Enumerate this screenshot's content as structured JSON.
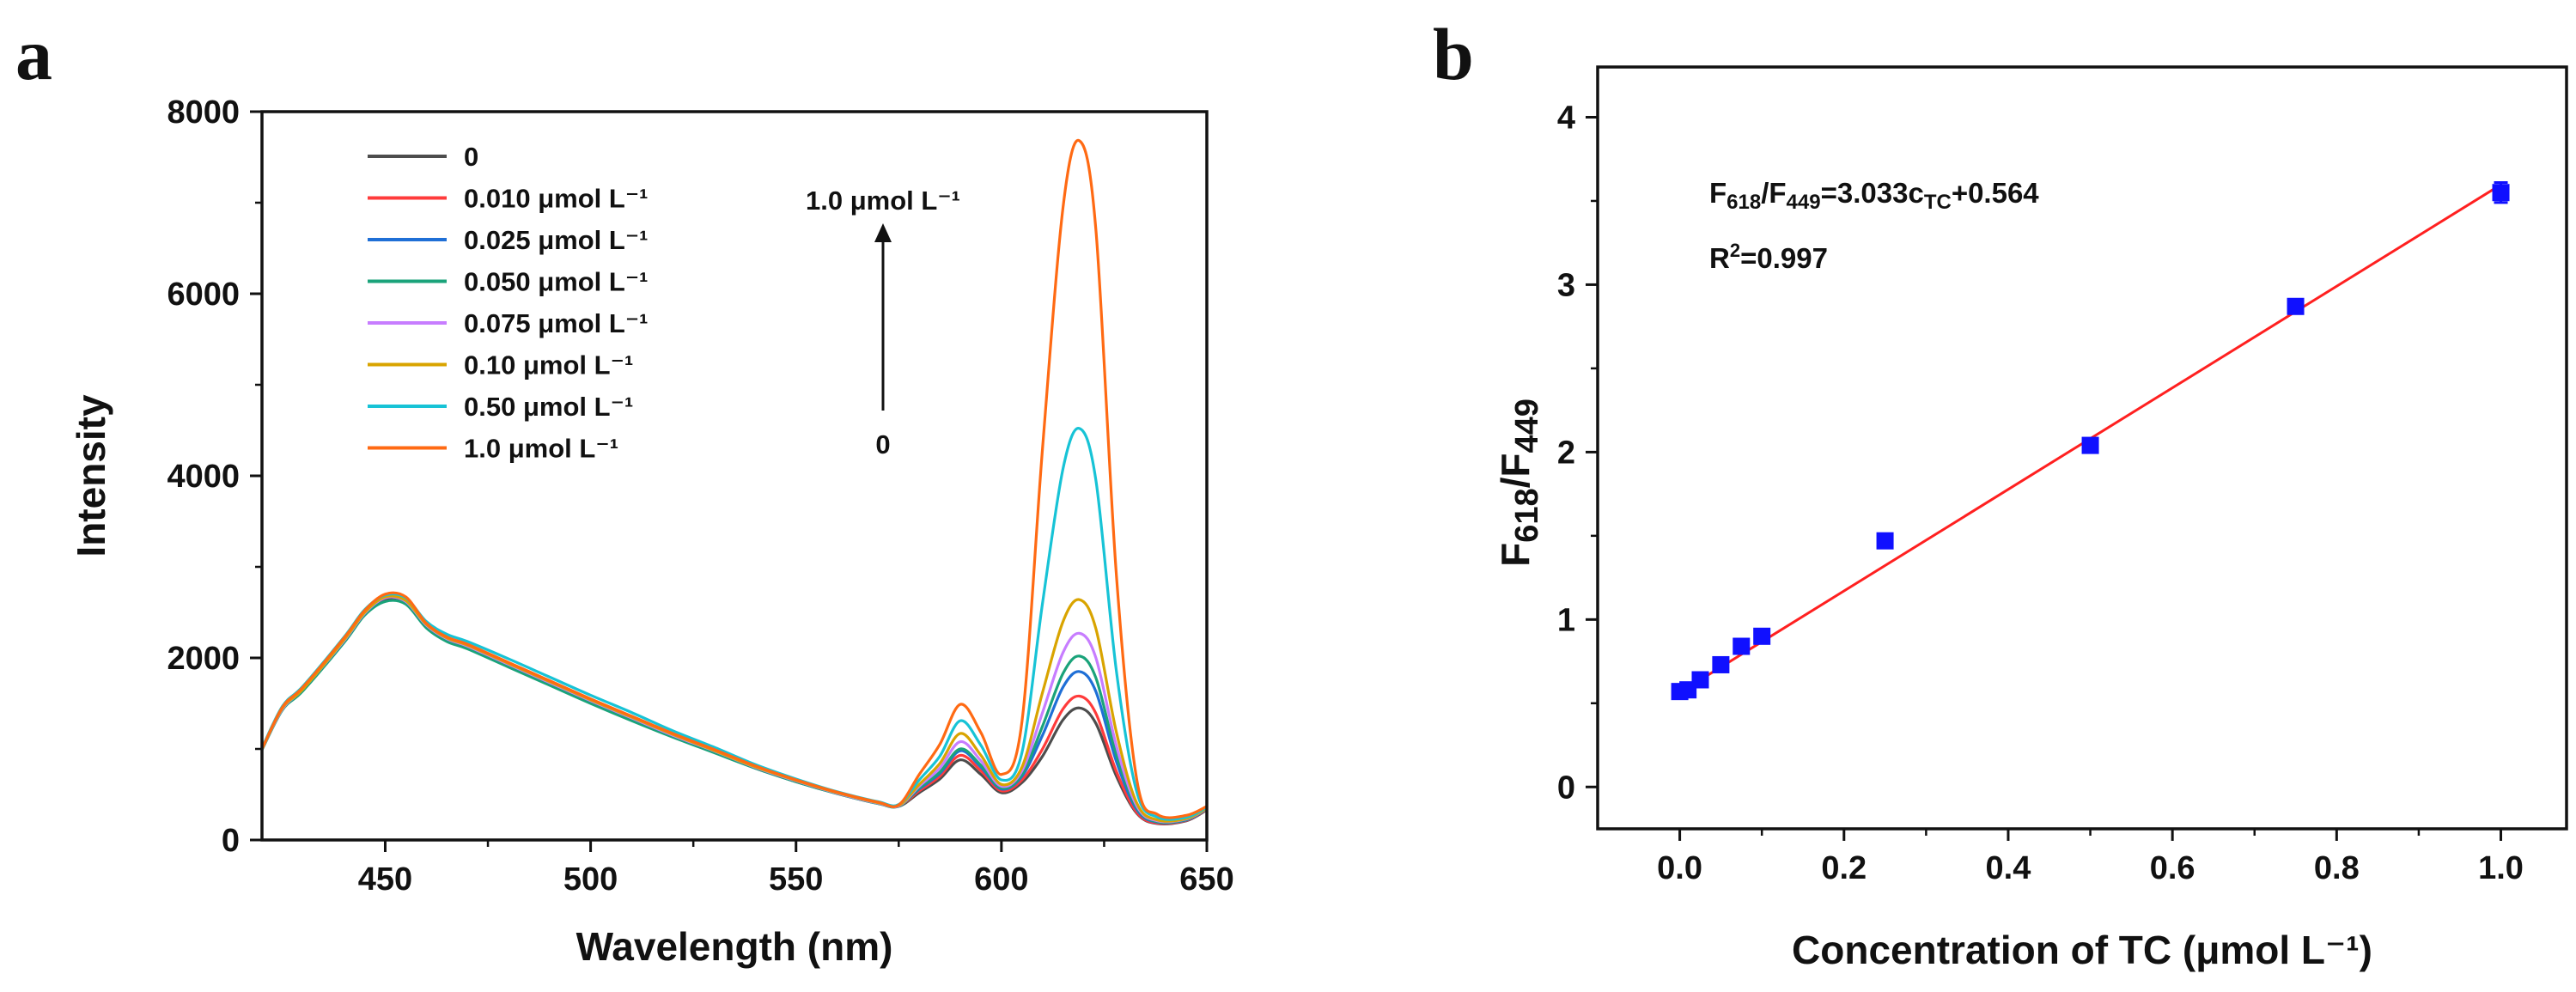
{
  "panels": {
    "a": {
      "letter": "a"
    },
    "b": {
      "letter": "b"
    }
  },
  "chart_data": [
    {
      "type": "line",
      "panel": "a",
      "xlabel": "Wavelength (nm)",
      "ylabel": "Intensity",
      "xlim": [
        420,
        650
      ],
      "ylim": [
        0,
        8000
      ],
      "xticks": [
        450,
        500,
        550,
        600,
        650
      ],
      "yticks": [
        0,
        2000,
        4000,
        6000,
        8000
      ],
      "legend_position": "top-left",
      "annotation_top": "1.0 μmol L⁻¹",
      "annotation_bottom": "0",
      "x": [
        420,
        425,
        430,
        440,
        445,
        450,
        455,
        460,
        465,
        470,
        480,
        490,
        500,
        510,
        520,
        530,
        540,
        550,
        560,
        570,
        575,
        580,
        585,
        590,
        595,
        600,
        605,
        610,
        615,
        619,
        623,
        628,
        633,
        638,
        645,
        650
      ],
      "series": [
        {
          "name": "0",
          "color": "#4d4d4d",
          "peak590": 880,
          "peak618": 1450,
          "values": [
            1000,
            1440,
            1650,
            2180,
            2480,
            2640,
            2600,
            2350,
            2200,
            2120,
            1920,
            1720,
            1520,
            1330,
            1140,
            970,
            790,
            640,
            510,
            400,
            370,
            520,
            670,
            880,
            720,
            520,
            630,
            920,
            1320,
            1450,
            1280,
            700,
            290,
            180,
            210,
            330
          ]
        },
        {
          "name": "0.010 μmol L⁻¹",
          "color": "#ff3b3b",
          "peak590": 930,
          "peak618": 1580,
          "values": [
            1000,
            1440,
            1660,
            2190,
            2490,
            2660,
            2620,
            2360,
            2210,
            2130,
            1930,
            1730,
            1530,
            1340,
            1150,
            980,
            800,
            650,
            515,
            405,
            375,
            540,
            700,
            930,
            760,
            540,
            660,
            1000,
            1440,
            1580,
            1390,
            750,
            300,
            185,
            215,
            335
          ]
        },
        {
          "name": "0.025 μmol L⁻¹",
          "color": "#1f6fd6",
          "peak590": 980,
          "peak618": 1850,
          "values": [
            1000,
            1450,
            1670,
            2200,
            2500,
            2670,
            2640,
            2370,
            2220,
            2140,
            1940,
            1740,
            1540,
            1350,
            1160,
            985,
            805,
            655,
            520,
            410,
            380,
            560,
            730,
            980,
            800,
            560,
            700,
            1150,
            1680,
            1850,
            1630,
            860,
            330,
            195,
            220,
            340
          ]
        },
        {
          "name": "0.050 μmol L⁻¹",
          "color": "#1aa37a",
          "peak590": 1000,
          "peak618": 2020,
          "values": [
            990,
            1430,
            1640,
            2170,
            2470,
            2620,
            2590,
            2330,
            2180,
            2100,
            1900,
            1700,
            1500,
            1310,
            1130,
            960,
            790,
            640,
            510,
            400,
            370,
            570,
            745,
            1000,
            820,
            570,
            720,
            1250,
            1830,
            2020,
            1780,
            930,
            350,
            200,
            225,
            340
          ]
        },
        {
          "name": "0.075 μmol L⁻¹",
          "color": "#c77dff",
          "peak590": 1080,
          "peak618": 2270,
          "values": [
            1000,
            1440,
            1660,
            2190,
            2490,
            2660,
            2620,
            2360,
            2210,
            2130,
            1930,
            1730,
            1530,
            1340,
            1150,
            980,
            800,
            650,
            515,
            405,
            375,
            590,
            790,
            1080,
            870,
            590,
            760,
            1400,
            2060,
            2270,
            2000,
            1030,
            370,
            210,
            230,
            345
          ]
        },
        {
          "name": "0.10 μmol L⁻¹",
          "color": "#d9a400",
          "peak590": 1170,
          "peak618": 2640,
          "values": [
            1000,
            1450,
            1660,
            2200,
            2500,
            2670,
            2630,
            2370,
            2220,
            2140,
            1940,
            1740,
            1540,
            1350,
            1160,
            985,
            805,
            655,
            520,
            410,
            380,
            610,
            840,
            1170,
            930,
            610,
            800,
            1620,
            2400,
            2640,
            2320,
            1180,
            400,
            220,
            235,
            350
          ]
        },
        {
          "name": "0.50 μmol L⁻¹",
          "color": "#17c3d6",
          "peak590": 1310,
          "peak618": 4520,
          "values": [
            1010,
            1470,
            1690,
            2230,
            2530,
            2690,
            2660,
            2400,
            2260,
            2180,
            1990,
            1790,
            1590,
            1400,
            1200,
            1020,
            830,
            670,
            530,
            420,
            390,
            660,
            920,
            1310,
            1040,
            660,
            960,
            2600,
            4080,
            4520,
            3950,
            1850,
            520,
            250,
            250,
            360
          ]
        },
        {
          "name": "1.0 μmol L⁻¹",
          "color": "#ff6a13",
          "peak590": 1490,
          "peak618": 7680,
          "values": [
            1000,
            1460,
            1680,
            2220,
            2520,
            2700,
            2670,
            2380,
            2230,
            2150,
            1950,
            1750,
            1550,
            1360,
            1170,
            995,
            815,
            660,
            525,
            415,
            385,
            720,
            1050,
            1490,
            1180,
            720,
            1300,
            4300,
            6950,
            7680,
            6700,
            2900,
            650,
            280,
            270,
            370
          ]
        }
      ]
    },
    {
      "type": "scatter",
      "panel": "b",
      "xlabel": "Concentration of TC (μmol L⁻¹)",
      "ylabel_main": "F",
      "ylabel_sub1": "618",
      "ylabel_slash": "/F",
      "ylabel_sub2": "449",
      "xlim": [
        -0.1,
        1.08
      ],
      "ylim": [
        -0.25,
        4.3
      ],
      "xticks": [
        "0.0",
        "0.2",
        "0.4",
        "0.6",
        "0.8",
        "1.0"
      ],
      "yticks": [
        "0",
        "1",
        "2",
        "3",
        "4"
      ],
      "equation": {
        "f1": "F",
        "s1": "618",
        "f2": "/F",
        "s2": "449",
        "rest": "=3.033c",
        "sub": "TC",
        "tail": "+0.564"
      },
      "r2": {
        "pre": "R",
        "sup": "2",
        "post": "=0.997"
      },
      "fit": {
        "slope": 3.033,
        "intercept": 0.564,
        "color": "#ff2020"
      },
      "marker_color": "#1010ff",
      "points": [
        {
          "x": 0.0,
          "y": 0.57,
          "err": 0.03
        },
        {
          "x": 0.01,
          "y": 0.58,
          "err": 0.03
        },
        {
          "x": 0.025,
          "y": 0.64,
          "err": 0.03
        },
        {
          "x": 0.05,
          "y": 0.73,
          "err": 0.03
        },
        {
          "x": 0.075,
          "y": 0.84,
          "err": 0.03
        },
        {
          "x": 0.1,
          "y": 0.9,
          "err": 0.03
        },
        {
          "x": 0.25,
          "y": 1.47,
          "err": 0.04
        },
        {
          "x": 0.5,
          "y": 2.04,
          "err": 0.03
        },
        {
          "x": 0.75,
          "y": 2.87,
          "err": 0.03
        },
        {
          "x": 1.0,
          "y": 3.55,
          "err": 0.06
        }
      ]
    }
  ]
}
